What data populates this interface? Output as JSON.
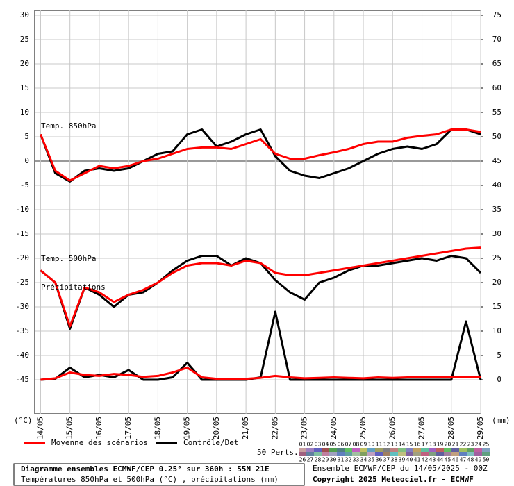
{
  "chart_data": {
    "type": "line",
    "x": [
      0,
      0.5,
      1,
      1.5,
      2,
      2.5,
      3,
      3.5,
      4,
      4.5,
      5,
      5.5,
      6,
      6.5,
      7,
      7.5,
      8,
      8.5,
      9,
      9.5,
      10,
      10.5,
      11,
      11.5,
      12,
      12.5,
      13,
      13.5,
      14,
      14.5,
      15
    ],
    "xlim": [
      -0.2,
      15
    ],
    "xticks": [
      {
        "value": 0,
        "label": "14/05"
      },
      {
        "value": 1,
        "label": "15/05"
      },
      {
        "value": 2,
        "label": "16/05"
      },
      {
        "value": 3,
        "label": "17/05"
      },
      {
        "value": 4,
        "label": "18/05"
      },
      {
        "value": 5,
        "label": "19/05"
      },
      {
        "value": 6,
        "label": "20/05"
      },
      {
        "value": 7,
        "label": "21/05"
      },
      {
        "value": 8,
        "label": "22/05"
      },
      {
        "value": 9,
        "label": "23/05"
      },
      {
        "value": 10,
        "label": "24/05"
      },
      {
        "value": 11,
        "label": "25/05"
      },
      {
        "value": 12,
        "label": "26/05"
      },
      {
        "value": 13,
        "label": "27/05"
      },
      {
        "value": 14,
        "label": "28/05"
      },
      {
        "value": 15,
        "label": "29/05"
      }
    ],
    "ylim": [
      -52,
      31
    ],
    "yticks": [
      30,
      25,
      20,
      15,
      10,
      5,
      0,
      -5,
      -10,
      -15,
      -20,
      -25,
      -30,
      -35,
      -40,
      -45
    ],
    "y2lim": [
      -7,
      76
    ],
    "y2ticks": [
      75,
      70,
      65,
      60,
      55,
      50,
      45,
      40,
      35,
      30,
      25,
      20,
      15,
      10,
      5,
      0
    ],
    "ylabel": "(°C)",
    "y2label": "(mm)",
    "grid": true,
    "legend": [
      {
        "name": "Moyenne des scénarios",
        "color": "#ff0000"
      },
      {
        "name": "Contrôle/Det",
        "color": "#000000"
      }
    ],
    "panels": [
      {
        "label": "Temp. 850hPa",
        "axis": "y",
        "mean": [
          5.5,
          -2,
          -4,
          -2.5,
          -1,
          -1.5,
          -1,
          0,
          0.5,
          1.5,
          2.5,
          2.8,
          2.8,
          2.5,
          3.5,
          4.5,
          1.5,
          0.5,
          0.5,
          1.2,
          1.8,
          2.5,
          3.5,
          4,
          4,
          4.8,
          5.2,
          5.5,
          6.5,
          6.5,
          6
        ],
        "control": [
          5.5,
          -2.5,
          -4.2,
          -2,
          -1.5,
          -2,
          -1.5,
          0,
          1.5,
          2,
          5.5,
          6.5,
          3,
          4,
          5.5,
          6.5,
          1,
          -2,
          -3,
          -3.5,
          -2.5,
          -1.5,
          0,
          1.5,
          2.5,
          3,
          2.5,
          3.5,
          6.5,
          6.5,
          5.5
        ]
      },
      {
        "label": "Temp. 500hPa",
        "axis": "y",
        "mean": [
          -22.5,
          -25,
          -34,
          -26,
          -27,
          -29,
          -27.5,
          -26.5,
          -25,
          -23,
          -21.5,
          -21,
          -21,
          -21.5,
          -20.5,
          -21,
          -23,
          -23.5,
          -23.5,
          -23,
          -22.5,
          -22,
          -21.5,
          -21,
          -20.5,
          -20,
          -19.5,
          -19,
          -18.5,
          -18,
          -17.8
        ],
        "control": [
          -22.5,
          -25,
          -34.5,
          -26,
          -27.5,
          -30,
          -27.5,
          -27,
          -25,
          -22.5,
          -20.5,
          -19.5,
          -19.5,
          -21.5,
          -20,
          -21,
          -24.5,
          -27,
          -28.5,
          -25,
          -24,
          -22.5,
          -21.5,
          -21.5,
          -21,
          -20.5,
          -20,
          -20.5,
          -19.5,
          -20,
          -23
        ]
      },
      {
        "label": "Précipitations",
        "axis": "y2",
        "mean": [
          0,
          0.3,
          1.5,
          1,
          0.8,
          1.2,
          1,
          0.6,
          0.8,
          1.5,
          2.5,
          0.5,
          0.2,
          0.2,
          0.2,
          0.4,
          0.8,
          0.5,
          0.3,
          0.4,
          0.5,
          0.4,
          0.3,
          0.5,
          0.4,
          0.5,
          0.5,
          0.6,
          0.5,
          0.6,
          0.6
        ],
        "control": [
          0,
          0.2,
          2.5,
          0.5,
          1,
          0.5,
          2,
          0,
          0,
          0.5,
          3.5,
          0,
          0,
          0,
          0,
          0.5,
          14,
          0,
          0,
          0,
          0,
          0,
          0,
          0,
          0,
          0,
          0,
          0,
          0,
          12,
          0
        ]
      }
    ],
    "perturbations": {
      "label": "50 Perts.",
      "members": [
        "01",
        "02",
        "03",
        "04",
        "05",
        "06",
        "07",
        "08",
        "09",
        "10",
        "11",
        "12",
        "13",
        "14",
        "15",
        "16",
        "17",
        "18",
        "19",
        "20",
        "21",
        "22",
        "23",
        "24",
        "25",
        "26",
        "27",
        "28",
        "29",
        "30",
        "31",
        "32",
        "33",
        "34",
        "35",
        "36",
        "37",
        "38",
        "39",
        "40",
        "41",
        "42",
        "43",
        "44",
        "45",
        "46",
        "47",
        "48",
        "49",
        "50"
      ],
      "colors": [
        "#c8a0a0",
        "#a080c0",
        "#6060c0",
        "#a05050",
        "#50a050",
        "#508080",
        "#60c060",
        "#c060c0",
        "#c0c060",
        "#60a0c0",
        "#a0a060",
        "#808080",
        "#c08080",
        "#80c080",
        "#8080c0",
        "#c0a060",
        "#60c0a0",
        "#a060c0",
        "#c06060",
        "#60c060",
        "#6060a0",
        "#a0c060",
        "#60a060",
        "#c060a0",
        "#80a0c0",
        "#a06080",
        "#6080a0",
        "#80c0a0",
        "#c080a0",
        "#a0a0c0",
        "#6080c0",
        "#60a0a0",
        "#a0c0a0",
        "#80a060",
        "#c0a0c0",
        "#6060c0",
        "#a08060",
        "#60c0c0",
        "#c0c080",
        "#8060a0",
        "#a0a080",
        "#c06080",
        "#80a080",
        "#6060a0",
        "#a080a0",
        "#c0a080",
        "#6080c0",
        "#80c0c0",
        "#a060a0",
        "#60a080"
      ]
    },
    "footer": {
      "title": "Diagramme ensembles ECMWF/CEP 0.25° sur 360h : 55N 21E",
      "subtitle": "Températures 850hPa et 500hPa (°C) , précipitations (mm)",
      "run": "Ensemble ECMWF/CEP du 14/05/2025 - 00Z",
      "copyright": "Copyright 2025 Meteociel.fr - ECMWF"
    }
  }
}
